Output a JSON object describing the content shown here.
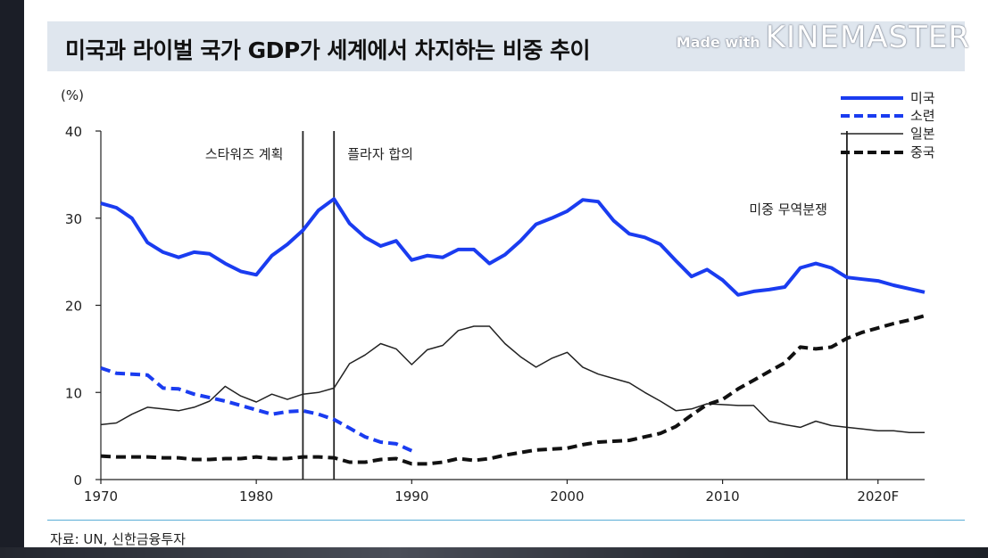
{
  "title": "미국과 라이벌 국가 GDP가 세계에서 차지하는 비중 추이",
  "watermark": {
    "prefix": "Made with",
    "brand": "KINEMASTER"
  },
  "source": "자료: UN, 신한금융투자",
  "chart_data": {
    "type": "line",
    "title": "미국과 라이벌 국가 GDP가 세계에서 차지하는 비중 추이",
    "ylabel": "(%)",
    "xlabel": "",
    "xlim": [
      1970,
      2023
    ],
    "ylim": [
      0,
      40
    ],
    "yticks": [
      0,
      10,
      20,
      30,
      40
    ],
    "xticks": [
      {
        "value": 1970,
        "label": "1970"
      },
      {
        "value": 1980,
        "label": "1980"
      },
      {
        "value": 1990,
        "label": "1990"
      },
      {
        "value": 2000,
        "label": "2000"
      },
      {
        "value": 2010,
        "label": "2010"
      },
      {
        "value": 2020,
        "label": "2020F"
      }
    ],
    "grid": false,
    "legend_position": "top-right",
    "events": [
      {
        "year": 1983,
        "label": "스타워즈 계획",
        "label_side": "left"
      },
      {
        "year": 1985,
        "label": "플라자 합의",
        "label_side": "right"
      },
      {
        "year": 2018,
        "label": "미중 무역분쟁",
        "label_side": "left"
      }
    ],
    "series": [
      {
        "name": "미국",
        "color": "#1a3cf0",
        "style": "solid",
        "width": 4,
        "x": [
          1970,
          1971,
          1972,
          1973,
          1974,
          1975,
          1976,
          1977,
          1978,
          1979,
          1980,
          1981,
          1982,
          1983,
          1984,
          1985,
          1986,
          1987,
          1988,
          1989,
          1990,
          1991,
          1992,
          1993,
          1994,
          1995,
          1996,
          1997,
          1998,
          1999,
          2000,
          2001,
          2002,
          2003,
          2004,
          2005,
          2006,
          2007,
          2008,
          2009,
          2010,
          2011,
          2012,
          2013,
          2014,
          2015,
          2016,
          2017,
          2018,
          2019,
          2020,
          2021,
          2022,
          2023
        ],
        "values": [
          31.7,
          31.2,
          30.0,
          27.2,
          26.1,
          25.5,
          26.1,
          25.9,
          24.8,
          23.9,
          23.5,
          25.7,
          27.0,
          28.6,
          30.9,
          32.2,
          29.4,
          27.8,
          26.8,
          27.4,
          25.2,
          25.7,
          25.5,
          26.4,
          26.4,
          24.8,
          25.8,
          27.4,
          29.3,
          30.0,
          30.8,
          32.1,
          31.9,
          29.7,
          28.2,
          27.8,
          27.0,
          25.1,
          23.3,
          24.1,
          22.9,
          21.2,
          21.6,
          21.8,
          22.1,
          24.3,
          24.8,
          24.3,
          23.2,
          23.0,
          22.8,
          22.3,
          21.9,
          21.5
        ]
      },
      {
        "name": "소련",
        "color": "#1a3cf0",
        "style": "dashed",
        "width": 4,
        "x": [
          1970,
          1971,
          1972,
          1973,
          1974,
          1975,
          1976,
          1977,
          1978,
          1979,
          1980,
          1981,
          1982,
          1983,
          1984,
          1985,
          1986,
          1987,
          1988,
          1989,
          1990
        ],
        "values": [
          12.8,
          12.2,
          12.1,
          12.0,
          10.5,
          10.4,
          9.8,
          9.4,
          9.0,
          8.5,
          8.0,
          7.5,
          7.8,
          7.9,
          7.5,
          6.9,
          5.9,
          4.9,
          4.3,
          4.1,
          3.3
        ]
      },
      {
        "name": "일본",
        "color": "#222222",
        "style": "solid",
        "width": 1.5,
        "x": [
          1970,
          1971,
          1972,
          1973,
          1974,
          1975,
          1976,
          1977,
          1978,
          1979,
          1980,
          1981,
          1982,
          1983,
          1984,
          1985,
          1986,
          1987,
          1988,
          1989,
          1990,
          1991,
          1992,
          1993,
          1994,
          1995,
          1996,
          1997,
          1998,
          1999,
          2000,
          2001,
          2002,
          2003,
          2004,
          2005,
          2006,
          2007,
          2008,
          2009,
          2010,
          2011,
          2012,
          2013,
          2014,
          2015,
          2016,
          2017,
          2018,
          2019,
          2020,
          2021,
          2022,
          2023
        ],
        "values": [
          6.3,
          6.5,
          7.5,
          8.3,
          8.1,
          7.9,
          8.3,
          9.0,
          10.7,
          9.6,
          8.9,
          9.8,
          9.2,
          9.8,
          10.0,
          10.5,
          13.3,
          14.3,
          15.6,
          15.0,
          13.2,
          14.9,
          15.4,
          17.1,
          17.6,
          17.6,
          15.6,
          14.1,
          12.9,
          13.9,
          14.6,
          12.9,
          12.1,
          11.6,
          11.1,
          10.0,
          9.0,
          7.9,
          8.1,
          8.7,
          8.6,
          8.5,
          8.5,
          6.7,
          6.3,
          6.0,
          6.7,
          6.2,
          6.0,
          5.8,
          5.6,
          5.6,
          5.4,
          5.4
        ]
      },
      {
        "name": "중국",
        "color": "#111111",
        "style": "dashed",
        "width": 4,
        "x": [
          1970,
          1971,
          1972,
          1973,
          1974,
          1975,
          1976,
          1977,
          1978,
          1979,
          1980,
          1981,
          1982,
          1983,
          1984,
          1985,
          1986,
          1987,
          1988,
          1989,
          1990,
          1991,
          1992,
          1993,
          1994,
          1995,
          1996,
          1997,
          1998,
          1999,
          2000,
          2001,
          2002,
          2003,
          2004,
          2005,
          2006,
          2007,
          2008,
          2009,
          2010,
          2011,
          2012,
          2013,
          2014,
          2015,
          2016,
          2017,
          2018,
          2019,
          2020,
          2021,
          2022,
          2023
        ],
        "values": [
          2.7,
          2.6,
          2.6,
          2.6,
          2.5,
          2.5,
          2.3,
          2.3,
          2.4,
          2.4,
          2.6,
          2.4,
          2.4,
          2.6,
          2.6,
          2.5,
          2.0,
          2.0,
          2.3,
          2.4,
          1.8,
          1.8,
          2.0,
          2.4,
          2.2,
          2.4,
          2.8,
          3.1,
          3.4,
          3.5,
          3.6,
          4.0,
          4.3,
          4.4,
          4.5,
          4.9,
          5.3,
          6.1,
          7.4,
          8.6,
          9.2,
          10.4,
          11.4,
          12.4,
          13.4,
          15.2,
          15.0,
          15.2,
          16.2,
          16.9,
          17.4,
          17.9,
          18.3,
          18.8
        ]
      }
    ]
  }
}
